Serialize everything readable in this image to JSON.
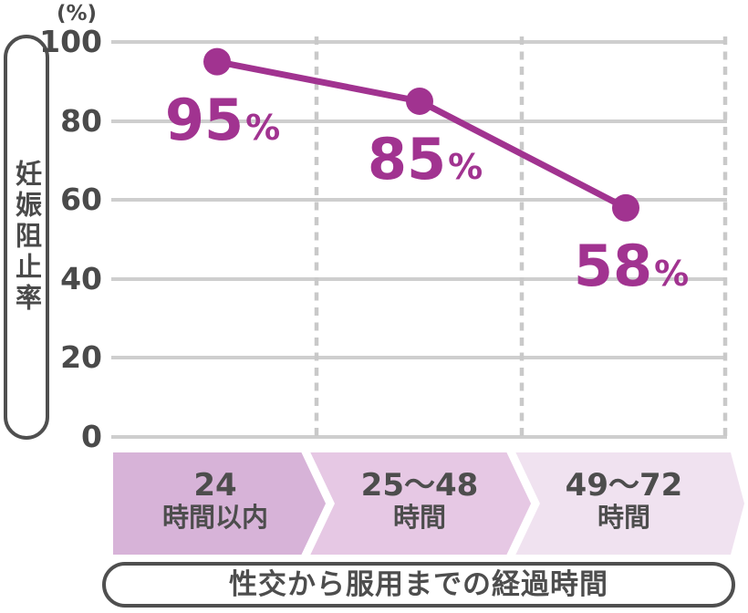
{
  "colors": {
    "accent_purple": "#a13390",
    "grid_gray": "#cecece",
    "dash_gray": "#c9c9c9",
    "outline_dark": "#4f4f4f",
    "text_dark": "#4a4a4a",
    "band_text": "#4d4d4d",
    "band_1": "#d7b3d8",
    "band_2": "#e6c8e4",
    "band_3": "#f0e2f0"
  },
  "y_axis": {
    "unit": "(%)",
    "title": "妊娠阻止率",
    "ticks": [
      "100",
      "80",
      "60",
      "40",
      "20",
      "0"
    ]
  },
  "x_axis": {
    "title": "性交から服用までの経過時間",
    "categories": [
      {
        "line1": "24",
        "line2": "時間以内"
      },
      {
        "line1": "25〜48",
        "line2": "時間"
      },
      {
        "line1": "49〜72",
        "line2": "時間"
      }
    ]
  },
  "points": {
    "percent_sign": "%"
  },
  "chart_data": {
    "type": "line",
    "categories": [
      "24時間以内",
      "25〜48時間",
      "49〜72時間"
    ],
    "values": [
      95,
      85,
      58
    ],
    "point_labels": [
      "95%",
      "85%",
      "58%"
    ],
    "title": "",
    "xlabel": "性交から服用までの経過時間",
    "ylabel": "妊娠阻止率",
    "unit": "(%)",
    "ylim": [
      0,
      100
    ],
    "yticks": [
      100,
      80,
      60,
      40,
      20,
      0
    ],
    "grid": "horizontal solid lines; vertical dashed category separators",
    "legend": "none",
    "line_color": "#a13390",
    "marker": "filled circle"
  }
}
